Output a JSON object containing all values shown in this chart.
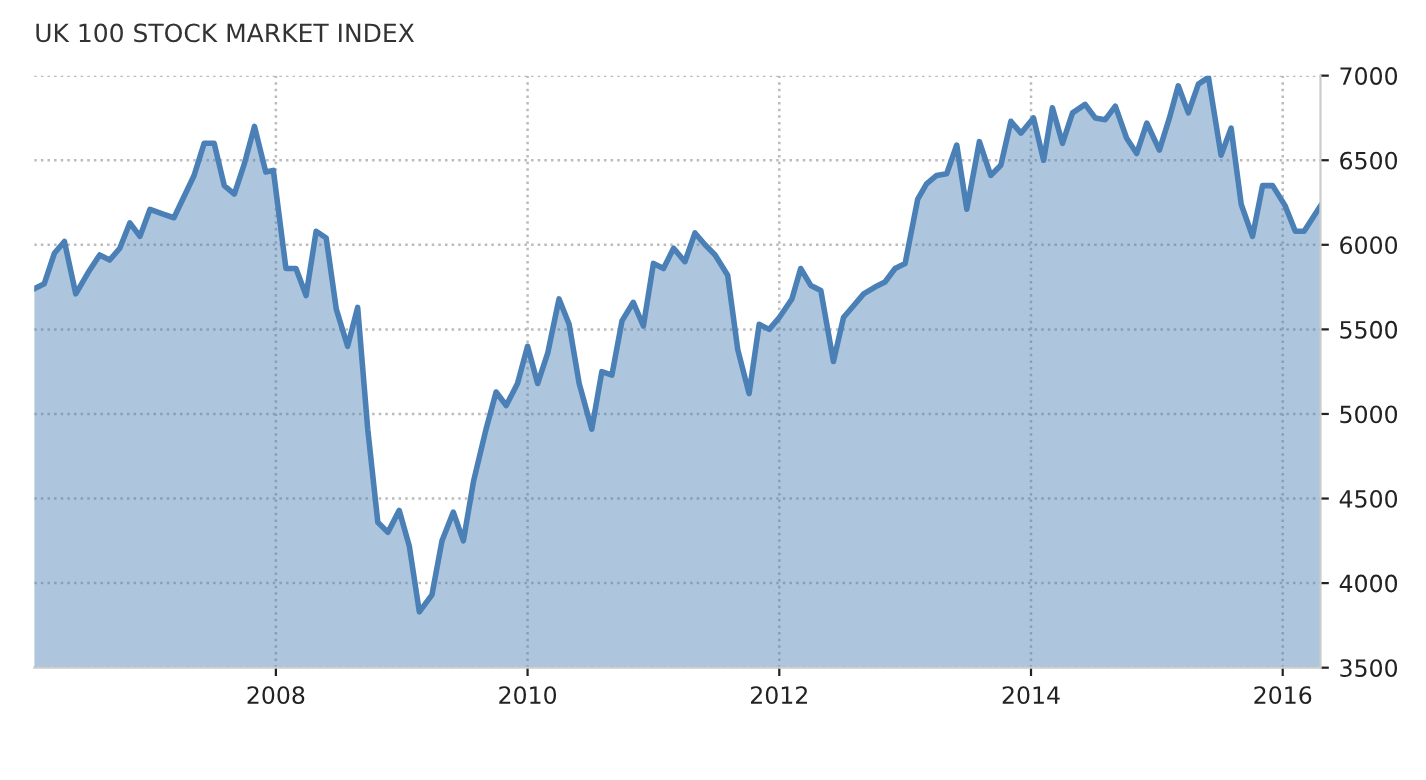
{
  "chart_data": {
    "type": "area",
    "title": "UK 100 STOCK MARKET INDEX",
    "x": [
      2006.08,
      2006.16,
      2006.24,
      2006.32,
      2006.41,
      2006.52,
      2006.6,
      2006.68,
      2006.76,
      2006.84,
      2006.92,
      2007.0,
      2007.11,
      2007.19,
      2007.35,
      2007.43,
      2007.51,
      2007.59,
      2007.67,
      2007.75,
      2007.83,
      2007.92,
      2007.98,
      2008.08,
      2008.16,
      2008.24,
      2008.32,
      2008.4,
      2008.48,
      2008.57,
      2008.65,
      2008.73,
      2008.81,
      2008.89,
      2008.98,
      2009.06,
      2009.14,
      2009.24,
      2009.32,
      2009.41,
      2009.49,
      2009.57,
      2009.67,
      2009.75,
      2009.83,
      2009.92,
      2010.0,
      2010.08,
      2010.16,
      2010.25,
      2010.33,
      2010.41,
      2010.51,
      2010.59,
      2010.67,
      2010.75,
      2010.84,
      2010.92,
      2011.0,
      2011.08,
      2011.16,
      2011.25,
      2011.33,
      2011.41,
      2011.49,
      2011.59,
      2011.67,
      2011.76,
      2011.84,
      2011.92,
      2012.0,
      2012.1,
      2012.17,
      2012.25,
      2012.33,
      2012.43,
      2012.51,
      2012.59,
      2012.67,
      2012.76,
      2012.84,
      2012.92,
      2013.0,
      2013.1,
      2013.17,
      2013.25,
      2013.33,
      2013.41,
      2013.49,
      2013.59,
      2013.68,
      2013.76,
      2013.84,
      2013.92,
      2014.02,
      2014.1,
      2014.17,
      2014.25,
      2014.33,
      2014.43,
      2014.51,
      2014.59,
      2014.67,
      2014.76,
      2014.84,
      2014.92,
      2015.02,
      2015.1,
      2015.17,
      2015.25,
      2015.33,
      2015.41,
      2015.51,
      2015.59,
      2015.67,
      2015.76,
      2015.84,
      2015.92,
      2016.02,
      2016.1,
      2016.17,
      2016.3
    ],
    "series": [
      {
        "color": "#4a80b6",
        "values": [
          5740,
          5770,
          5950,
          6020,
          5710,
          5850,
          5940,
          5910,
          5980,
          6130,
          6050,
          6210,
          6180,
          6160,
          6410,
          6600,
          6600,
          6350,
          6300,
          6480,
          6700,
          6430,
          6440,
          5860,
          5860,
          5700,
          6080,
          6040,
          5620,
          5400,
          5630,
          4910,
          4360,
          4300,
          4430,
          4220,
          3830,
          3930,
          4250,
          4420,
          4250,
          4600,
          4910,
          5130,
          5050,
          5180,
          5400,
          5180,
          5360,
          5680,
          5530,
          5180,
          4910,
          5250,
          5230,
          5550,
          5660,
          5520,
          5890,
          5860,
          5980,
          5900,
          6070,
          6000,
          5940,
          5820,
          5380,
          5120,
          5530,
          5500,
          5570,
          5680,
          5860,
          5760,
          5730,
          5310,
          5570,
          5640,
          5710,
          5750,
          5780,
          5860,
          5890,
          6270,
          6360,
          6410,
          6420,
          6590,
          6210,
          6610,
          6410,
          6470,
          6730,
          6660,
          6750,
          6500,
          6810,
          6600,
          6780,
          6830,
          6750,
          6740,
          6820,
          6630,
          6540,
          6720,
          6560,
          6750,
          6940,
          6780,
          6950,
          6990,
          6530,
          6690,
          6240,
          6050,
          6350,
          6350,
          6230,
          6080,
          6080,
          6230
        ]
      }
    ],
    "xlim": [
      2006.08,
      2016.3
    ],
    "xticks": [
      2008,
      2010,
      2012,
      2014,
      2016
    ],
    "ylim": [
      3500,
      7000
    ],
    "yticks": [
      3500,
      4000,
      4500,
      5000,
      5500,
      6000,
      6500,
      7000
    ],
    "grid": true,
    "legend": false
  }
}
